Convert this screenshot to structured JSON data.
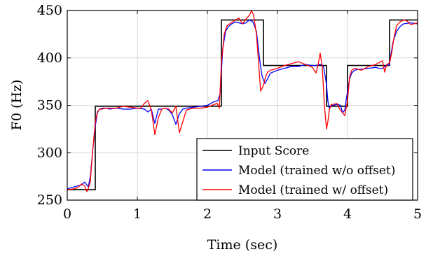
{
  "chart_data": {
    "type": "line",
    "title": "",
    "xlabel": "Time (sec)",
    "ylabel": "F0 (Hz)",
    "xlim": [
      0,
      5
    ],
    "ylim": [
      250,
      450
    ],
    "xticks": [
      0,
      1,
      2,
      3,
      4,
      5
    ],
    "yticks": [
      250,
      300,
      350,
      400,
      450
    ],
    "grid": true,
    "legend_position": "bottom-right",
    "series": [
      {
        "name": "Input Score",
        "color": "#000000",
        "style": "step",
        "x": [
          0,
          0.4,
          0.4,
          2.2,
          2.2,
          2.8,
          2.8,
          3.7,
          3.7,
          4.0,
          4.0,
          4.6,
          4.6,
          5.0
        ],
        "y": [
          261,
          261,
          349,
          349,
          440,
          440,
          392,
          392,
          349,
          349,
          392,
          392,
          440,
          440
        ]
      },
      {
        "name": "Model (trained w/o offset)",
        "color": "#0000ff",
        "style": "line",
        "x": [
          0,
          0.1,
          0.2,
          0.25,
          0.3,
          0.33,
          0.36,
          0.4,
          0.43,
          0.46,
          0.5,
          0.55,
          0.6,
          0.7,
          0.8,
          0.9,
          1.0,
          1.1,
          1.15,
          1.2,
          1.25,
          1.3,
          1.35,
          1.4,
          1.45,
          1.5,
          1.55,
          1.6,
          1.65,
          1.7,
          1.8,
          1.9,
          2.0,
          2.1,
          2.15,
          2.18,
          2.22,
          2.26,
          2.3,
          2.35,
          2.4,
          2.5,
          2.55,
          2.6,
          2.65,
          2.7,
          2.75,
          2.78,
          2.82,
          2.86,
          2.9,
          3.0,
          3.1,
          3.2,
          3.3,
          3.4,
          3.5,
          3.55,
          3.6,
          3.63,
          3.66,
          3.7,
          3.72,
          3.74,
          3.77,
          3.8,
          3.85,
          3.9,
          3.93,
          3.96,
          4.0,
          4.03,
          4.06,
          4.1,
          4.15,
          4.2,
          4.3,
          4.4,
          4.45,
          4.5,
          4.55,
          4.6,
          4.62,
          4.65,
          4.7,
          4.75,
          4.8,
          4.9,
          5.0
        ],
        "y": [
          262,
          264,
          266,
          269,
          264,
          275,
          300,
          328,
          342,
          346,
          347,
          347,
          346,
          347,
          346,
          346,
          347,
          346,
          343,
          346,
          331,
          346,
          346,
          347,
          345,
          340,
          330,
          341,
          346,
          347,
          348,
          349,
          350,
          354,
          355,
          362,
          410,
          428,
          433,
          436,
          438,
          436,
          437,
          440,
          438,
          428,
          396,
          381,
          373,
          378,
          384,
          387,
          389,
          391,
          391,
          393,
          392,
          392,
          393,
          393,
          390,
          372,
          354,
          347,
          350,
          350,
          351,
          350,
          342,
          345,
          365,
          378,
          384,
          387,
          388,
          388,
          389,
          390,
          389,
          389,
          392,
          393,
          404,
          417,
          428,
          433,
          436,
          437,
          436
        ]
      },
      {
        "name": "Model (trained w/ offset)",
        "color": "#ff0000",
        "style": "line",
        "x": [
          0,
          0.1,
          0.15,
          0.2,
          0.25,
          0.28,
          0.3,
          0.33,
          0.36,
          0.4,
          0.43,
          0.46,
          0.5,
          0.55,
          0.6,
          0.7,
          0.8,
          0.9,
          1.0,
          1.05,
          1.1,
          1.15,
          1.2,
          1.25,
          1.3,
          1.35,
          1.4,
          1.45,
          1.5,
          1.55,
          1.6,
          1.65,
          1.7,
          1.8,
          1.9,
          2.0,
          2.1,
          2.14,
          2.17,
          2.2,
          2.24,
          2.28,
          2.32,
          2.4,
          2.45,
          2.5,
          2.55,
          2.6,
          2.63,
          2.66,
          2.7,
          2.73,
          2.76,
          2.8,
          2.83,
          2.86,
          2.9,
          3.0,
          3.1,
          3.2,
          3.3,
          3.4,
          3.5,
          3.55,
          3.58,
          3.61,
          3.64,
          3.67,
          3.7,
          3.72,
          3.74,
          3.77,
          3.8,
          3.85,
          3.88,
          3.92,
          3.96,
          4.0,
          4.03,
          4.06,
          4.1,
          4.15,
          4.2,
          4.3,
          4.4,
          4.45,
          4.5,
          4.53,
          4.56,
          4.6,
          4.63,
          4.66,
          4.7,
          4.75,
          4.8,
          4.85,
          4.9,
          4.95,
          5.0
        ],
        "y": [
          261,
          262,
          263,
          267,
          265,
          259,
          262,
          270,
          300,
          332,
          343,
          346,
          346,
          347,
          347,
          347,
          349,
          348,
          347,
          347,
          352,
          355,
          345,
          319,
          337,
          346,
          347,
          346,
          342,
          349,
          321,
          333,
          345,
          347,
          347,
          348,
          351,
          352,
          347,
          395,
          425,
          434,
          436,
          440,
          442,
          436,
          441,
          445,
          450,
          445,
          425,
          395,
          365,
          371,
          380,
          385,
          387,
          389,
          392,
          394,
          396,
          393,
          390,
          384,
          393,
          405,
          390,
          350,
          325,
          333,
          345,
          351,
          351,
          352,
          347,
          343,
          339,
          355,
          380,
          387,
          389,
          388,
          387,
          391,
          393,
          395,
          397,
          385,
          393,
          395,
          405,
          420,
          434,
          438,
          440,
          439,
          435,
          436,
          437
        ]
      }
    ]
  }
}
